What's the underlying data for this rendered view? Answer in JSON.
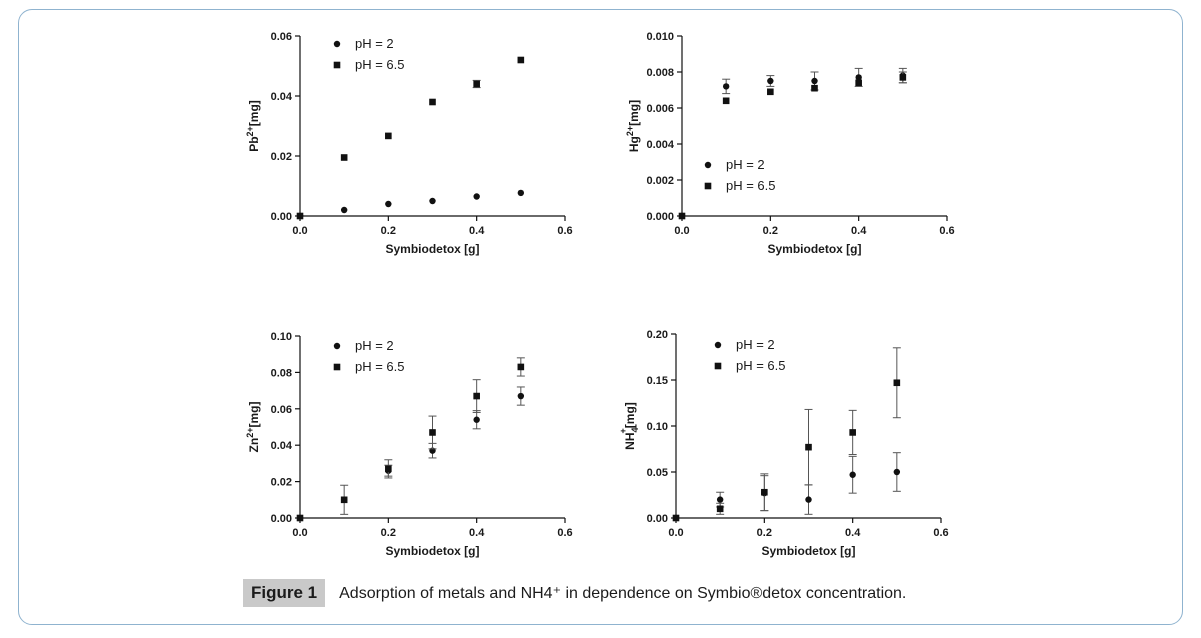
{
  "figure": {
    "label": "Figure 1",
    "caption": "Adsorption of metals and NH4⁺ in dependence on Symbio®detox concentration."
  },
  "chart_data": [
    {
      "type": "scatter",
      "ylabel_main": "Pb",
      "ylabel_sup": "2+",
      "ylabel_sub": "",
      "ylabel_rest": "[mg]",
      "xlabel": "Symbiodetox [g]",
      "xlim": [
        0,
        0.6
      ],
      "ylim": [
        0,
        0.06
      ],
      "xticks": [
        "0.0",
        "0.2",
        "0.4",
        "0.6"
      ],
      "yticks": [
        "0.00",
        "0.02",
        "0.04",
        "0.06"
      ],
      "legend_position": "top-left",
      "series": [
        {
          "name": "pH = 2",
          "marker": "circle",
          "x": [
            0,
            0.1,
            0.2,
            0.3,
            0.4,
            0.5
          ],
          "y": [
            0,
            0.002,
            0.004,
            0.005,
            0.0065,
            0.0077
          ],
          "err": [
            0,
            0,
            0,
            0,
            0,
            0
          ]
        },
        {
          "name": "pH = 6.5",
          "marker": "square",
          "x": [
            0,
            0.1,
            0.2,
            0.3,
            0.4,
            0.5
          ],
          "y": [
            0,
            0.0195,
            0.0267,
            0.038,
            0.044,
            0.052
          ],
          "err": [
            0,
            0,
            0,
            0,
            0.0012,
            0
          ]
        }
      ]
    },
    {
      "type": "scatter",
      "ylabel_main": "Hg",
      "ylabel_sup": "2+",
      "ylabel_sub": "",
      "ylabel_rest": "[mg]",
      "xlabel": "Symbiodetox [g]",
      "xlim": [
        0,
        0.6
      ],
      "ylim": [
        0,
        0.01
      ],
      "xticks": [
        "0.0",
        "0.2",
        "0.4",
        "0.6"
      ],
      "yticks": [
        "0.000",
        "0.002",
        "0.004",
        "0.006",
        "0.008",
        "0.010"
      ],
      "legend_position": "middle-left",
      "series": [
        {
          "name": "pH = 2",
          "marker": "circle",
          "x": [
            0,
            0.1,
            0.2,
            0.3,
            0.4,
            0.5
          ],
          "y": [
            0,
            0.0072,
            0.0075,
            0.0075,
            0.0077,
            0.0078
          ],
          "err": [
            0,
            0.0004,
            0.0003,
            0.0005,
            0.0005,
            0.0004
          ]
        },
        {
          "name": "pH = 6.5",
          "marker": "square",
          "x": [
            0,
            0.1,
            0.2,
            0.3,
            0.4,
            0.5
          ],
          "y": [
            0,
            0.0064,
            0.0069,
            0.0071,
            0.0074,
            0.0077
          ],
          "err": [
            0,
            0,
            0,
            0,
            0,
            0.0003
          ]
        }
      ]
    },
    {
      "type": "scatter",
      "ylabel_main": "Zn",
      "ylabel_sup": "2+",
      "ylabel_sub": "",
      "ylabel_rest": "[mg]",
      "xlabel": "Symbiodetox [g]",
      "xlim": [
        0,
        0.6
      ],
      "ylim": [
        0,
        0.1
      ],
      "xticks": [
        "0.0",
        "0.2",
        "0.4",
        "0.6"
      ],
      "yticks": [
        "0.00",
        "0.02",
        "0.04",
        "0.06",
        "0.08",
        "0.10"
      ],
      "legend_position": "top-left",
      "series": [
        {
          "name": "pH = 2",
          "marker": "circle",
          "x": [
            0,
            0.1,
            0.2,
            0.3,
            0.4,
            0.5
          ],
          "y": [
            0,
            0.01,
            0.026,
            0.037,
            0.054,
            0.067
          ],
          "err": [
            0,
            0,
            0.003,
            0.004,
            0.005,
            0.005
          ]
        },
        {
          "name": "pH = 6.5",
          "marker": "square",
          "x": [
            0,
            0.1,
            0.2,
            0.3,
            0.4,
            0.5
          ],
          "y": [
            0,
            0.01,
            0.027,
            0.047,
            0.067,
            0.083
          ],
          "err": [
            0,
            0.008,
            0.005,
            0.009,
            0.009,
            0.005
          ]
        }
      ]
    },
    {
      "type": "scatter",
      "ylabel_main": "NH",
      "ylabel_sup": "+",
      "ylabel_sub": "4",
      "ylabel_rest": "[mg]",
      "xlabel": "Symbiodetox [g]",
      "xlim": [
        0,
        0.6
      ],
      "ylim": [
        0,
        0.2
      ],
      "xticks": [
        "0.0",
        "0.2",
        "0.4",
        "0.6"
      ],
      "yticks": [
        "0.00",
        "0.05",
        "0.10",
        "0.15",
        "0.20"
      ],
      "legend_position": "top-left",
      "series": [
        {
          "name": "pH = 2",
          "marker": "circle",
          "x": [
            0,
            0.1,
            0.2,
            0.3,
            0.4,
            0.5
          ],
          "y": [
            0,
            0.02,
            0.027,
            0.02,
            0.047,
            0.05
          ],
          "err": [
            0,
            0.008,
            0.019,
            0.016,
            0.02,
            0.021
          ]
        },
        {
          "name": "pH = 6.5",
          "marker": "square",
          "x": [
            0,
            0.1,
            0.2,
            0.3,
            0.4,
            0.5
          ],
          "y": [
            0,
            0.01,
            0.028,
            0.077,
            0.093,
            0.147
          ],
          "err": [
            0,
            0.006,
            0.02,
            0.041,
            0.024,
            0.038
          ]
        }
      ]
    }
  ]
}
